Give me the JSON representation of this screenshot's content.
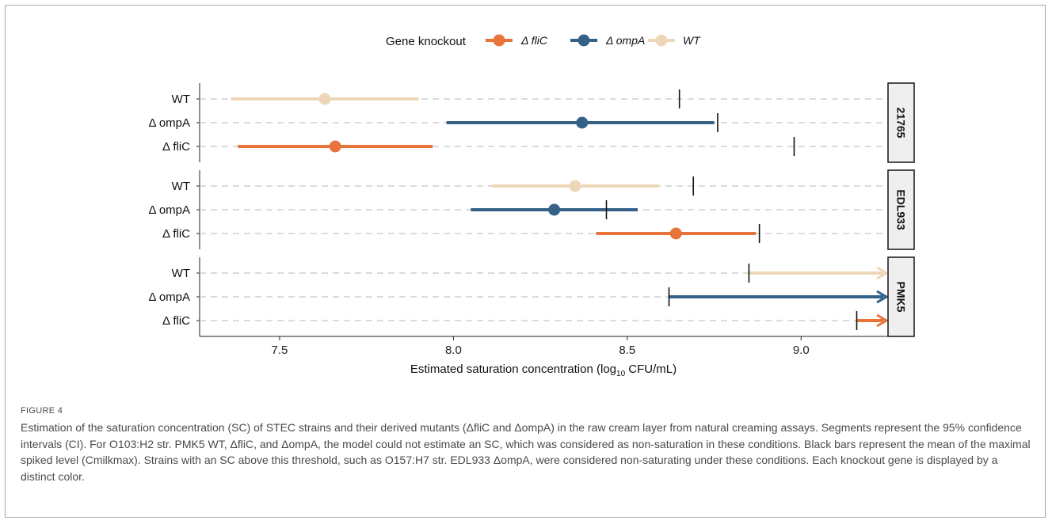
{
  "chart_data": {
    "type": "interval",
    "xlabel": "Estimated saturation concentration (log",
    "xlabel_sub": "10",
    "xlabel_end": " CFU/mL)",
    "xlim": [
      7.27,
      9.25
    ],
    "xticks": [
      7.5,
      8.0,
      8.5,
      9.0
    ],
    "xtick_labels": [
      "7.5",
      "8.0",
      "8.5",
      "9.0"
    ],
    "categories": [
      "WT",
      "Δ ompA",
      "Δ fliC"
    ],
    "legend": {
      "title": "Gene knockout",
      "position": "top",
      "entries": [
        {
          "label": "Δ fliC",
          "color": "#E8743B"
        },
        {
          "label": "Δ ompA",
          "color": "#356189"
        },
        {
          "label": "WT",
          "color": "#EED7B8"
        }
      ]
    },
    "panels": [
      {
        "strain": "21765",
        "rows": [
          {
            "category": "WT",
            "estimate": 7.63,
            "ci_low": 7.36,
            "ci_high": 7.9,
            "cmilk_max": 8.65,
            "arrow": false
          },
          {
            "category": "Δ ompA",
            "estimate": 8.37,
            "ci_low": 7.98,
            "ci_high": 8.75,
            "cmilk_max": 8.76,
            "arrow": false
          },
          {
            "category": "Δ fliC",
            "estimate": 7.66,
            "ci_low": 7.38,
            "ci_high": 7.94,
            "cmilk_max": 8.98,
            "arrow": false
          }
        ]
      },
      {
        "strain": "EDL933",
        "rows": [
          {
            "category": "WT",
            "estimate": 8.35,
            "ci_low": 8.11,
            "ci_high": 8.59,
            "cmilk_max": 8.69,
            "arrow": false
          },
          {
            "category": "Δ ompA",
            "estimate": 8.29,
            "ci_low": 8.05,
            "ci_high": 8.53,
            "cmilk_max": 8.44,
            "arrow": false
          },
          {
            "category": "Δ fliC",
            "estimate": 8.64,
            "ci_low": 8.41,
            "ci_high": 8.87,
            "cmilk_max": 8.88,
            "arrow": false
          }
        ]
      },
      {
        "strain": "PMK5",
        "rows": [
          {
            "category": "WT",
            "estimate": null,
            "ci_low": 8.85,
            "ci_high": 9.25,
            "cmilk_max": 8.85,
            "arrow": true
          },
          {
            "category": "Δ ompA",
            "estimate": null,
            "ci_low": 8.62,
            "ci_high": 9.25,
            "cmilk_max": 8.62,
            "arrow": true
          },
          {
            "category": "Δ fliC",
            "estimate": null,
            "ci_low": 9.16,
            "ci_high": 9.25,
            "cmilk_max": 9.16,
            "arrow": true
          }
        ]
      }
    ]
  },
  "caption": {
    "label": "FIGURE 4",
    "text": "Estimation of the saturation concentration (SC) of STEC strains and their derived mutants (ΔfliC and ΔompA) in the raw cream layer from natural creaming assays. Segments represent the 95% confidence intervals (CI). For O103:H2 str. PMK5 WT, ΔfliC, and ΔompA, the model could not estimate an SC, which was considered as non-saturation in these conditions. Black bars represent the mean of the maximal spiked level (Cmilkmax). Strains with an SC above this threshold, such as O157:H7 str. EDL933 ΔompA, were considered non-saturating under these conditions. Each knockout gene is displayed by a distinct color."
  }
}
